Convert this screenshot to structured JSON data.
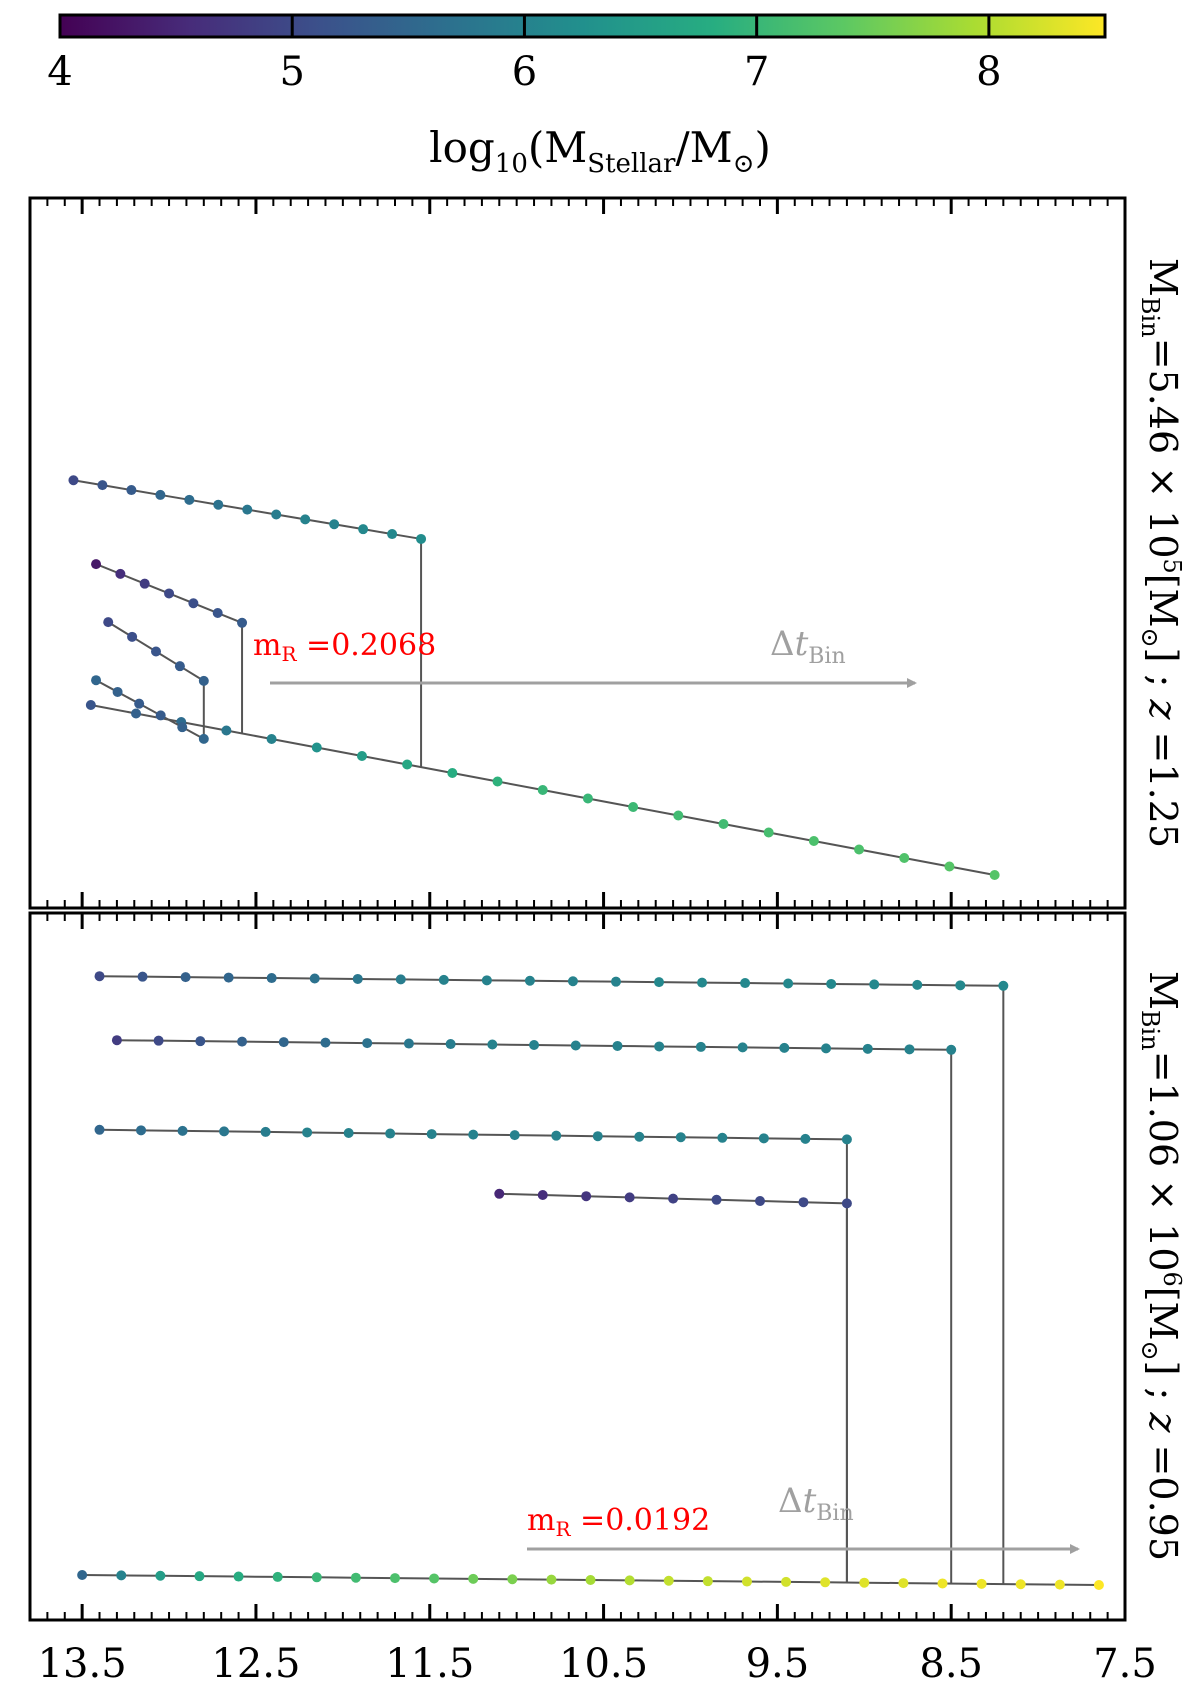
{
  "colorbar": {
    "ticks": [
      "4",
      "5",
      "6",
      "7",
      "8"
    ],
    "label_main": "log",
    "label_sub10": "10",
    "label_open": "(M",
    "label_sub_stellar": "Stellar",
    "label_mid": "/M",
    "label_sub_sun": "⊙",
    "label_close": ")",
    "range": [
      4,
      8.5
    ],
    "colormap": "viridis"
  },
  "panels": [
    {
      "side_label": "M_Bin=5.46 × 10^5[M_⊙] ; z =1.25",
      "side": {
        "m": "M",
        "sub": "Bin",
        "value": "=5.46 × 10",
        "exp": "5",
        "unit_open": "[M",
        "unit_sub": "⊙",
        "unit_close": "] ; ",
        "z": "z",
        "z_value": " =1.25"
      },
      "annotation": {
        "m": "m",
        "sub": "R",
        "value": " =0.2068",
        "color": "#ff0000"
      },
      "arrow_label": {
        "delta": "Δ",
        "t": "t",
        "sub": "Bin",
        "color": "#a0a0a0"
      }
    },
    {
      "side_label": "M_Bin=1.06 × 10^6[M_⊙] ; z =0.95",
      "side": {
        "m": "M",
        "sub": "Bin",
        "value": "=1.06 × 10",
        "exp": "6",
        "unit_open": "[M",
        "unit_sub": "⊙",
        "unit_close": "] ; ",
        "z": "z",
        "z_value": " =0.95"
      },
      "annotation": {
        "m": "m",
        "sub": "R",
        "value": " =0.0192",
        "color": "#ff0000"
      },
      "arrow_label": {
        "delta": "Δ",
        "t": "t",
        "sub": "Bin",
        "color": "#a0a0a0"
      }
    }
  ],
  "x_axis": {
    "ticks": [
      "13.5",
      "12.5",
      "11.5",
      "10.5",
      "9.5",
      "8.5",
      "7.5"
    ],
    "xlim": [
      13.8,
      7.5
    ]
  },
  "chart_data": [
    {
      "type": "scatter",
      "title": "",
      "xlabel": "",
      "ylabel": "",
      "xlim": [
        13.8,
        7.5
      ],
      "note": "merger tree; x = lookback time axis values, c = log10 stellar mass",
      "trees": [
        {
          "branches": [
            {
              "y": 0.0,
              "x_start": 13.45,
              "x_end": 8.25,
              "c": [
                5.2,
                5.4,
                5.6,
                5.8,
                6.0,
                6.3,
                6.5,
                6.7,
                6.8,
                6.9,
                7.0,
                7.0,
                7.05,
                7.1,
                7.1,
                7.15,
                7.2,
                7.2,
                7.25,
                7.3,
                7.3
              ]
            },
            {
              "y": 0.55,
              "x_start": 13.55,
              "x_end": 11.55,
              "c": [
                5.0,
                5.2,
                5.3,
                5.5,
                5.6,
                5.7,
                5.8,
                5.9,
                6.0,
                6.0,
                6.1,
                6.1,
                6.2
              ]
            },
            {
              "y": 0.42,
              "x_start": 13.42,
              "x_end": 12.58,
              "c": [
                4.3,
                4.6,
                4.8,
                5.0,
                5.1,
                5.2,
                5.3
              ]
            },
            {
              "y": 0.33,
              "x_start": 13.35,
              "x_end": 12.8,
              "c": [
                5.0,
                5.1,
                5.2,
                5.3,
                5.4
              ]
            },
            {
              "y": 0.24,
              "x_start": 13.42,
              "x_end": 12.8,
              "c": [
                5.5,
                5.4,
                5.3,
                5.3,
                5.4,
                5.5
              ]
            }
          ]
        },
        {
          "branches": [
            {
              "y": 0.0,
              "x_start": 13.5,
              "x_end": 7.65,
              "c": [
                5.5,
                6.0,
                6.5,
                6.7,
                6.8,
                6.9,
                7.0,
                7.1,
                7.2,
                7.3,
                7.5,
                7.6,
                7.8,
                7.9,
                8.0,
                8.1,
                8.1,
                8.2,
                8.2,
                8.3,
                8.3,
                8.3,
                8.4,
                8.4,
                8.4,
                8.4,
                8.5
              ]
            },
            {
              "y": 0.92,
              "x_start": 13.4,
              "x_end": 8.2,
              "c": [
                5.0,
                5.2,
                5.4,
                5.5,
                5.6,
                5.7,
                5.8,
                5.9,
                6.0,
                6.0,
                6.0,
                6.0,
                6.0,
                6.1,
                6.1,
                6.1,
                6.1,
                6.1,
                6.1,
                6.1,
                6.1,
                6.1
              ]
            },
            {
              "y": 0.82,
              "x_start": 13.3,
              "x_end": 8.5,
              "c": [
                4.8,
                5.0,
                5.2,
                5.4,
                5.5,
                5.6,
                5.7,
                5.8,
                5.9,
                6.0,
                6.0,
                6.0,
                6.0,
                6.0,
                6.0,
                6.0,
                6.0,
                6.0,
                6.0,
                6.0,
                6.0
              ]
            },
            {
              "y": 0.68,
              "x_start": 13.4,
              "x_end": 9.1,
              "c": [
                5.5,
                5.6,
                5.7,
                5.8,
                5.9,
                6.0,
                6.0,
                6.0,
                6.0,
                6.0,
                6.0,
                6.0,
                6.0,
                6.0,
                6.0,
                6.0,
                6.0,
                6.0,
                6.0
              ]
            },
            {
              "y": 0.58,
              "x_start": 11.1,
              "x_end": 9.1,
              "c": [
                4.5,
                4.6,
                4.7,
                4.8,
                4.9,
                5.0,
                5.0,
                5.0,
                5.0
              ]
            }
          ]
        }
      ]
    }
  ]
}
